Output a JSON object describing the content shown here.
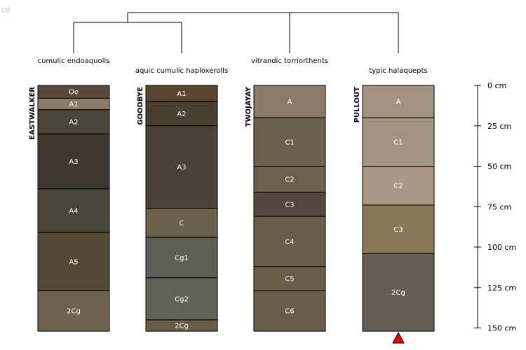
{
  "corner_text": "08",
  "ruler": {
    "ticks": [
      {
        "depth": 0,
        "label": "0 cm"
      },
      {
        "depth": 25,
        "label": "25 cm"
      },
      {
        "depth": 50,
        "label": "50 cm"
      },
      {
        "depth": 75,
        "label": "75 cm"
      },
      {
        "depth": 100,
        "label": "100 cm"
      },
      {
        "depth": 125,
        "label": "125 cm"
      },
      {
        "depth": 150,
        "label": "150 cm"
      }
    ],
    "max_depth": 150
  },
  "profiles": [
    {
      "name": "EASTWALKER",
      "taxon": "cumulic endoaquolls",
      "horizons": [
        {
          "name": "Oe",
          "top": 0,
          "bottom": 8,
          "color": "#5a4a3c"
        },
        {
          "name": "A1",
          "top": 8,
          "bottom": 15,
          "color": "#8c7b66"
        },
        {
          "name": "A2",
          "top": 15,
          "bottom": 30,
          "color": "#4a4539"
        },
        {
          "name": "A3",
          "top": 30,
          "bottom": 64,
          "color": "#3f3731"
        },
        {
          "name": "A4",
          "top": 64,
          "bottom": 91,
          "color": "#4b463b"
        },
        {
          "name": "A5",
          "top": 91,
          "bottom": 127,
          "color": "#514836"
        },
        {
          "name": "2Cg",
          "top": 127,
          "bottom": 152,
          "color": "#6f6150"
        }
      ]
    },
    {
      "name": "GOODBYE",
      "taxon": "aquic cumulic haploxerolls",
      "horizons": [
        {
          "name": "A1",
          "top": 0,
          "bottom": 10,
          "color": "#5a4530"
        },
        {
          "name": "A2",
          "top": 10,
          "bottom": 25,
          "color": "#4d3f32"
        },
        {
          "name": "A3",
          "top": 25,
          "bottom": 76,
          "color": "#4a423a"
        },
        {
          "name": "C",
          "top": 76,
          "bottom": 94,
          "color": "#6c5f4b"
        },
        {
          "name": "Cg1",
          "top": 94,
          "bottom": 119,
          "color": "#5e6057"
        },
        {
          "name": "Cg2",
          "top": 119,
          "bottom": 145,
          "color": "#5e6257"
        },
        {
          "name": "2Cg",
          "top": 145,
          "bottom": 152,
          "color": "#6b5c49"
        }
      ]
    },
    {
      "name": "TWOJAYAY",
      "taxon": "vitrandic torriorthents",
      "horizons": [
        {
          "name": "A",
          "top": 0,
          "bottom": 20,
          "color": "#8a7a68"
        },
        {
          "name": "C1",
          "top": 20,
          "bottom": 50,
          "color": "#6c604d"
        },
        {
          "name": "C2",
          "top": 50,
          "bottom": 66,
          "color": "#6c604e"
        },
        {
          "name": "C3",
          "top": 66,
          "bottom": 81,
          "color": "#52473a"
        },
        {
          "name": "C4",
          "top": 81,
          "bottom": 112,
          "color": "#6a5d4c"
        },
        {
          "name": "C5",
          "top": 112,
          "bottom": 127,
          "color": "#6a5d4c"
        },
        {
          "name": "C6",
          "top": 127,
          "bottom": 152,
          "color": "#6a5d4c"
        }
      ]
    },
    {
      "name": "PULLOUT",
      "taxon": "typic halaquepts",
      "horizons": [
        {
          "name": "A",
          "top": 0,
          "bottom": 20,
          "color": "#a39482"
        },
        {
          "name": "C1",
          "top": 20,
          "bottom": 50,
          "color": "#a39482"
        },
        {
          "name": "C2",
          "top": 50,
          "bottom": 74,
          "color": "#a89884"
        },
        {
          "name": "C3",
          "top": 74,
          "bottom": 104,
          "color": "#8b7858"
        },
        {
          "name": "2Cg",
          "top": 104,
          "bottom": 152,
          "color": "#665e54"
        }
      ],
      "marker_color": "#e8000b"
    }
  ]
}
